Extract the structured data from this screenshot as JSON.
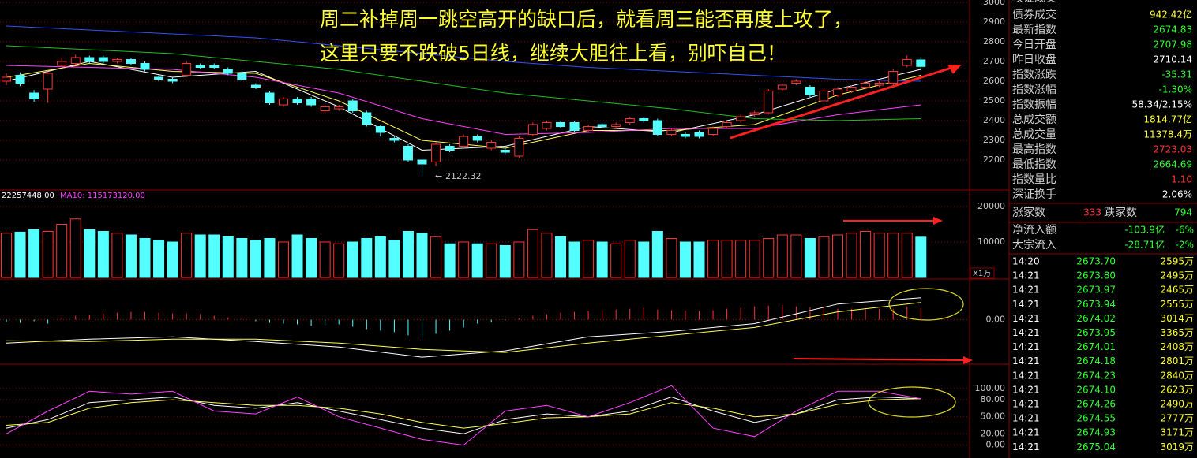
{
  "chart_data": [
    {
      "type": "candlestick",
      "ylim": [
        2052,
        3012
      ],
      "yticks": [
        2200,
        2300,
        2400,
        2500,
        2600,
        2700,
        2800,
        2900,
        3000
      ],
      "grid": true,
      "open": [
        2600,
        2630,
        2540,
        2560,
        2680,
        2690,
        2720,
        2720,
        2700,
        2710,
        2690,
        2620,
        2610,
        2630,
        2680,
        2680,
        2660,
        2640,
        2580,
        2540,
        2480,
        2510,
        2510,
        2450,
        2460,
        2500,
        2440,
        2370,
        2310,
        2270,
        2200,
        2190,
        2270,
        2270,
        2320,
        2260,
        2250,
        2220,
        2330,
        2360,
        2390,
        2390,
        2350,
        2380,
        2370,
        2390,
        2410,
        2400,
        2330,
        2330,
        2340,
        2330,
        2370,
        2400,
        2430,
        2440,
        2560,
        2590,
        2570,
        2500,
        2530,
        2550,
        2570,
        2580,
        2590,
        2680,
        2707.98
      ],
      "high": [
        2640,
        2645,
        2555,
        2650,
        2720,
        2735,
        2730,
        2730,
        2720,
        2720,
        2700,
        2630,
        2620,
        2700,
        2690,
        2690,
        2670,
        2650,
        2590,
        2550,
        2520,
        2520,
        2520,
        2480,
        2480,
        2510,
        2450,
        2380,
        2320,
        2280,
        2210,
        2290,
        2280,
        2330,
        2330,
        2300,
        2260,
        2320,
        2390,
        2400,
        2400,
        2400,
        2380,
        2390,
        2390,
        2420,
        2420,
        2410,
        2360,
        2340,
        2350,
        2370,
        2400,
        2430,
        2450,
        2560,
        2590,
        2610,
        2580,
        2560,
        2570,
        2580,
        2600,
        2600,
        2660,
        2730,
        2723.03
      ],
      "low": [
        2580,
        2575,
        2495,
        2490,
        2670,
        2680,
        2690,
        2690,
        2690,
        2680,
        2650,
        2600,
        2590,
        2620,
        2660,
        2660,
        2630,
        2600,
        2560,
        2480,
        2470,
        2480,
        2470,
        2440,
        2450,
        2440,
        2370,
        2320,
        2290,
        2190,
        2122.32,
        2170,
        2240,
        2260,
        2290,
        2250,
        2230,
        2210,
        2320,
        2350,
        2360,
        2340,
        2340,
        2360,
        2360,
        2380,
        2390,
        2320,
        2320,
        2310,
        2310,
        2320,
        2360,
        2390,
        2420,
        2430,
        2550,
        2580,
        2520,
        2490,
        2520,
        2540,
        2560,
        2570,
        2580,
        2670,
        2664.69
      ],
      "close": [
        2620,
        2590,
        2510,
        2640,
        2700,
        2720,
        2700,
        2700,
        2710,
        2690,
        2660,
        2610,
        2600,
        2690,
        2670,
        2670,
        2640,
        2610,
        2570,
        2490,
        2510,
        2490,
        2480,
        2470,
        2470,
        2450,
        2380,
        2340,
        2300,
        2200,
        2180,
        2280,
        2250,
        2320,
        2300,
        2290,
        2240,
        2310,
        2380,
        2390,
        2370,
        2350,
        2370,
        2370,
        2380,
        2410,
        2400,
        2330,
        2350,
        2320,
        2320,
        2360,
        2390,
        2420,
        2440,
        2550,
        2580,
        2600,
        2530,
        2550,
        2560,
        2570,
        2590,
        2590,
        2650,
        2710.14,
        2674.83
      ],
      "series": [
        {
          "color": "#ffffff",
          "x": [
            0,
            6,
            12,
            18,
            24,
            30,
            36,
            42,
            48,
            54,
            60,
            66
          ],
          "values": [
            2600,
            2700,
            2620,
            2650,
            2470,
            2250,
            2270,
            2370,
            2340,
            2430,
            2560,
            2660
          ]
        },
        {
          "color": "#ffff50",
          "x": [
            0,
            6,
            12,
            18,
            24,
            30,
            36,
            42,
            48,
            54,
            60,
            66
          ],
          "values": [
            2620,
            2690,
            2650,
            2640,
            2500,
            2300,
            2260,
            2350,
            2350,
            2380,
            2530,
            2630
          ]
        },
        {
          "color": "#ff40ff",
          "x": [
            0,
            6,
            12,
            18,
            24,
            30,
            36,
            42,
            48,
            54,
            60,
            66
          ],
          "values": [
            2680,
            2670,
            2660,
            2620,
            2540,
            2410,
            2330,
            2340,
            2360,
            2360,
            2430,
            2480
          ]
        },
        {
          "color": "#20c020",
          "x": [
            0,
            6,
            12,
            18,
            24,
            30,
            36,
            42,
            48,
            54,
            60,
            66
          ],
          "values": [
            2780,
            2760,
            2740,
            2700,
            2660,
            2600,
            2540,
            2500,
            2460,
            2410,
            2400,
            2410
          ]
        },
        {
          "color": "#3050ff",
          "x": [
            0,
            6,
            12,
            18,
            24,
            30,
            36,
            42,
            48,
            54,
            60,
            66
          ],
          "values": [
            2880,
            2860,
            2840,
            2820,
            2780,
            2740,
            2700,
            2670,
            2650,
            2630,
            2610,
            2600
          ]
        }
      ],
      "annotations": [
        "周二补掉周一跳空高开的缺口后，就看周三能否再度上攻了，",
        "这里只要不跌破5日线，继续大胆往上看，别吓自己！"
      ]
    },
    {
      "type": "bar",
      "ylim": [
        0,
        22000
      ],
      "yticks": [
        10000,
        20000
      ],
      "grid": true,
      "header": [
        "22257448.00",
        "MA10: 115173120.00"
      ],
      "unit": "X1万",
      "values": [
        12500,
        12800,
        13500,
        13000,
        15000,
        16500,
        13500,
        13000,
        12500,
        12000,
        11000,
        10500,
        10000,
        12500,
        12000,
        12000,
        11500,
        11000,
        10500,
        11000,
        10000,
        12000,
        11000,
        10000,
        9500,
        10000,
        11000,
        11500,
        10500,
        13000,
        12500,
        11500,
        9500,
        10000,
        9500,
        9500,
        9000,
        10000,
        13500,
        12500,
        11500,
        10000,
        10500,
        10000,
        9500,
        10500,
        10000,
        13000,
        11000,
        10000,
        10000,
        10500,
        10500,
        10500,
        10500,
        11000,
        12000,
        12000,
        11000,
        11500,
        12000,
        12500,
        13000,
        12500,
        12500,
        12500,
        11378.4
      ]
    },
    {
      "type": "bar",
      "ylim": [
        -55,
        50
      ],
      "yticks": [
        {
          "value": 0,
          "label": "0.00"
        }
      ],
      "grid": true,
      "values": [
        -3,
        -4,
        -2,
        -5,
        3,
        5,
        6,
        8,
        9,
        10,
        10,
        9,
        8,
        8,
        7,
        5,
        3,
        2,
        -2,
        -4,
        -5,
        -6,
        -8,
        -7,
        -6,
        -9,
        -12,
        -14,
        -16,
        -20,
        -23,
        -18,
        -14,
        -10,
        -5,
        -3,
        -1,
        2,
        5,
        7,
        9,
        10,
        11,
        12,
        13,
        14,
        15,
        13,
        12,
        12,
        11,
        12,
        14,
        15,
        17,
        18,
        19,
        17,
        16,
        15,
        14,
        14,
        13,
        14,
        14,
        17,
        15
      ],
      "series": [
        {
          "color": "#ffffff",
          "x": [
            0,
            6,
            12,
            18,
            24,
            30,
            36,
            42,
            48,
            54,
            60,
            66
          ],
          "values": [
            -30,
            -25,
            -22,
            -28,
            -35,
            -48,
            -40,
            -22,
            -15,
            -5,
            20,
            28
          ]
        },
        {
          "color": "#ffff50",
          "x": [
            0,
            6,
            12,
            18,
            24,
            30,
            36,
            42,
            48,
            54,
            60,
            66
          ],
          "values": [
            -27,
            -28,
            -25,
            -25,
            -30,
            -38,
            -42,
            -30,
            -20,
            -10,
            10,
            22
          ]
        }
      ]
    },
    {
      "type": "line",
      "ylim": [
        -20,
        140
      ],
      "yticks": [
        {
          "value": 0,
          "label": "0.00"
        },
        {
          "value": 20,
          "label": "20.00"
        },
        {
          "value": 50,
          "label": "50.00"
        },
        {
          "value": 80,
          "label": "80.00"
        },
        {
          "value": 100,
          "label": "100.00"
        }
      ],
      "grid": true,
      "series": [
        {
          "color": "#ffffff",
          "x": [
            0,
            3,
            6,
            9,
            12,
            15,
            18,
            21,
            24,
            27,
            30,
            33,
            36,
            39,
            42,
            45,
            48,
            51,
            54,
            57,
            60,
            63,
            66
          ],
          "values": [
            30,
            45,
            75,
            80,
            85,
            70,
            65,
            75,
            60,
            45,
            30,
            20,
            45,
            55,
            50,
            60,
            85,
            60,
            40,
            55,
            80,
            85,
            82
          ]
        },
        {
          "color": "#ffff50",
          "x": [
            0,
            3,
            6,
            9,
            12,
            15,
            18,
            21,
            24,
            27,
            30,
            33,
            36,
            39,
            42,
            45,
            48,
            51,
            54,
            57,
            60,
            63,
            66
          ],
          "values": [
            35,
            40,
            65,
            75,
            80,
            75,
            70,
            70,
            65,
            55,
            40,
            30,
            38,
            48,
            50,
            55,
            75,
            65,
            50,
            55,
            72,
            80,
            82
          ]
        },
        {
          "color": "#ff40ff",
          "x": [
            0,
            3,
            6,
            9,
            12,
            15,
            18,
            21,
            24,
            27,
            30,
            33,
            36,
            39,
            42,
            45,
            48,
            51,
            54,
            57,
            60,
            63,
            66
          ],
          "values": [
            20,
            60,
            95,
            90,
            95,
            60,
            55,
            85,
            50,
            30,
            10,
            0,
            60,
            70,
            50,
            75,
            105,
            30,
            15,
            60,
            95,
            95,
            82
          ]
        }
      ]
    }
  ],
  "quote_panel": {
    "cut_row": "权证成交",
    "rows": [
      [
        "债券成交",
        "942.42亿"
      ],
      [
        "最新指数",
        "2674.83"
      ],
      [
        "今日开盘",
        "2707.98"
      ],
      [
        "昨日收盘",
        "2710.14"
      ],
      [
        "指数涨跌",
        "-35.31"
      ],
      [
        "指数涨幅",
        "-1.30%"
      ],
      [
        "指数振幅",
        "58.34/2.15%"
      ],
      [
        "总成交额",
        "1814.77亿"
      ],
      [
        "总成交量",
        "11378.4万"
      ],
      [
        "最高指数",
        "2723.03"
      ],
      [
        "最低指数",
        "2664.69"
      ],
      [
        "指数量比",
        "1.10"
      ],
      [
        "深证换手",
        "2.06%"
      ]
    ],
    "breadth": [
      "涨家数",
      333,
      "跌家数",
      794
    ],
    "flows": [
      [
        "净流入额",
        "-103.9亿",
        "-6%"
      ],
      [
        "大宗流入",
        "-28.71亿",
        "-2%"
      ]
    ],
    "ticks": [
      [
        "14:20",
        "2673.70",
        "2595万"
      ],
      [
        "14:21",
        "2673.80",
        "2495万"
      ],
      [
        "14:21",
        "2673.97",
        "2465万"
      ],
      [
        "14:21",
        "2673.94",
        "2555万"
      ],
      [
        "14:21",
        "2674.02",
        "3014万"
      ],
      [
        "14:21",
        "2673.95",
        "3365万"
      ],
      [
        "14:21",
        "2674.01",
        "2408万"
      ],
      [
        "14:21",
        "2674.18",
        "2801万"
      ],
      [
        "14:21",
        "2674.23",
        "2840万"
      ],
      [
        "14:21",
        "2674.10",
        "2623万"
      ],
      [
        "14:21",
        "2674.26",
        "2490万"
      ],
      [
        "14:21",
        "2674.55",
        "2777万"
      ],
      [
        "14:21",
        "2674.93",
        "3171万"
      ],
      [
        "14:21",
        "2675.04",
        "3019万"
      ]
    ]
  }
}
